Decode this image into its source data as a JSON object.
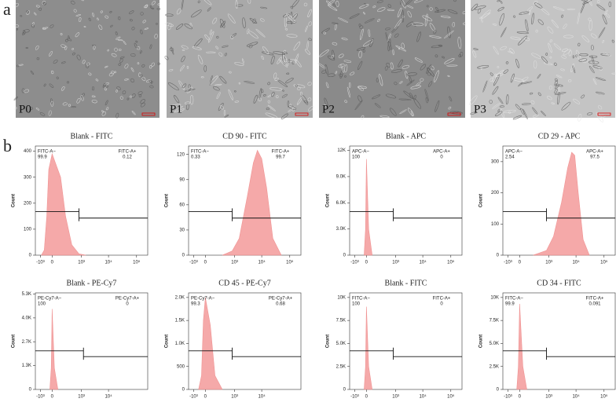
{
  "panel_a": {
    "label": "a",
    "images": [
      "P0",
      "P1",
      "P2",
      "P3"
    ]
  },
  "panel_b": {
    "label": "b"
  },
  "chart_data": [
    {
      "type": "area",
      "title": "Blank - FITC",
      "ylabel": "Count",
      "color": "#f4a0a0",
      "xscale": "biexponential",
      "x": [
        -800,
        -400,
        -200,
        -100,
        0,
        100,
        200,
        400,
        800,
        1500
      ],
      "values": [
        0,
        20,
        150,
        330,
        390,
        300,
        150,
        40,
        5,
        0
      ],
      "xlim": [
        -3000,
        250000
      ],
      "xticks": [
        {
          "value": -1000,
          "label": "-10³"
        },
        0,
        {
          "value": 1000,
          "label": "10³"
        },
        {
          "value": 10000,
          "label": "10⁴"
        },
        {
          "value": 100000,
          "label": "10⁵"
        }
      ],
      "ylim": [
        0,
        420
      ],
      "yticks": [
        0,
        100,
        200,
        300,
        400
      ],
      "gate": 800,
      "gate_labels": {
        "neg": "FITC-A−",
        "neg_value": 99.9,
        "pos": "FITC-A+",
        "pos_value": 0.12
      }
    },
    {
      "type": "area",
      "title": "CD 90 - FITC",
      "ylabel": "Count",
      "color": "#f4a0a0",
      "xscale": "biexponential",
      "x": [
        300,
        800,
        1500,
        3000,
        5000,
        7000,
        10000,
        15000,
        25000,
        50000
      ],
      "values": [
        0,
        5,
        20,
        70,
        110,
        125,
        115,
        80,
        20,
        0
      ],
      "xlim": [
        -3000,
        250000
      ],
      "xticks": [
        {
          "value": -1000,
          "label": "-10³"
        },
        0,
        {
          "value": 1000,
          "label": "10³"
        },
        {
          "value": 10000,
          "label": "10⁴"
        },
        {
          "value": 100000,
          "label": "10⁵"
        }
      ],
      "ylim": [
        0,
        130
      ],
      "yticks": [
        0,
        30,
        60,
        90,
        120
      ],
      "gate": 800,
      "gate_labels": {
        "neg": "FITC-A−",
        "neg_value": 0.33,
        "pos": "FITC-A+",
        "pos_value": 99.7
      }
    },
    {
      "type": "area",
      "title": "Blank - APC",
      "ylabel": "Count",
      "color": "#f4a0a0",
      "xscale": "biexponential",
      "x": [
        -60,
        -20,
        0,
        20,
        60
      ],
      "values": [
        0,
        3000,
        11000,
        3000,
        0
      ],
      "xlim": [
        -3000,
        250000
      ],
      "xticks": [
        {
          "value": -1000,
          "label": "-10³"
        },
        0,
        {
          "value": 1000,
          "label": "10³"
        },
        {
          "value": 10000,
          "label": "10⁴"
        },
        {
          "value": 100000,
          "label": "10⁵"
        }
      ],
      "ylim": [
        0,
        12500
      ],
      "yticks": [
        0,
        {
          "value": 3000,
          "label": "3.0K"
        },
        {
          "value": 6000,
          "label": "6.0K"
        },
        {
          "value": 9000,
          "label": "9.0K"
        },
        {
          "value": 12000,
          "label": "12K"
        }
      ],
      "gate": 800,
      "gate_labels": {
        "neg": "APC-A−",
        "neg_value": 100,
        "pos": "APC-A+",
        "pos_value": 0
      }
    },
    {
      "type": "area",
      "title": "CD 29 - APC",
      "ylabel": "Count",
      "color": "#f4a0a0",
      "xscale": "biexponential",
      "x": [
        200,
        800,
        1500,
        3000,
        5000,
        7000,
        9000,
        12000,
        18000,
        30000
      ],
      "values": [
        0,
        15,
        60,
        170,
        280,
        330,
        320,
        200,
        50,
        0
      ],
      "xlim": [
        -3000,
        250000
      ],
      "xticks": [
        {
          "value": -1000,
          "label": "-10³"
        },
        0,
        {
          "value": 1000,
          "label": "10³"
        },
        {
          "value": 10000,
          "label": "10⁴"
        },
        {
          "value": 100000,
          "label": "10⁵"
        }
      ],
      "ylim": [
        0,
        350
      ],
      "yticks": [
        0,
        100,
        200,
        300
      ],
      "gate": 800,
      "gate_labels": {
        "neg": "APC-A−",
        "neg_value": 2.54,
        "pos": "APC-A+",
        "pos_value": 97.5
      }
    },
    {
      "type": "area",
      "title": "Blank - PE-Cy7",
      "ylabel": "Count",
      "color": "#f4a0a0",
      "xscale": "biexponential",
      "x": [
        -60,
        -20,
        0,
        20,
        60
      ],
      "values": [
        0,
        1200,
        4500,
        1200,
        0
      ],
      "xlim": [
        -3000,
        250000
      ],
      "xticks": [
        {
          "value": -1000,
          "label": "-10³"
        },
        0,
        {
          "value": 1000,
          "label": "10³"
        },
        {
          "value": 10000,
          "label": "10⁴"
        }
      ],
      "ylim": [
        0,
        5400
      ],
      "yticks": [
        0,
        {
          "value": 1333,
          "label": "1.3K"
        },
        {
          "value": 2667,
          "label": "2.7K"
        },
        {
          "value": 4000,
          "label": "4.0K"
        },
        {
          "value": 5333,
          "label": "5.3K"
        }
      ],
      "gate": 1200,
      "gate_labels": {
        "neg": "PE-Cy7-A−",
        "neg_value": 100,
        "pos": "PE-Cy7-A+",
        "pos_value": 0
      }
    },
    {
      "type": "area",
      "title": "CD 45 - PE-Cy7",
      "ylabel": "Count",
      "color": "#f4a0a0",
      "xscale": "biexponential",
      "x": [
        -300,
        -120,
        -50,
        0,
        50,
        120,
        300
      ],
      "values": [
        0,
        300,
        1500,
        2000,
        1400,
        300,
        0
      ],
      "xlim": [
        -3000,
        250000
      ],
      "xticks": [
        {
          "value": -1000,
          "label": "-10³"
        },
        0,
        {
          "value": 1000,
          "label": "10³"
        },
        {
          "value": 10000,
          "label": "10⁴"
        }
      ],
      "ylim": [
        0,
        2100
      ],
      "yticks": [
        0,
        500,
        {
          "value": 1000,
          "label": "1.0K"
        },
        {
          "value": 1500,
          "label": "1.5K"
        },
        {
          "value": 2000,
          "label": "2.0K"
        }
      ],
      "gate": 800,
      "gate_labels": {
        "neg": "PE-Cy7-A−",
        "neg_value": 99.3,
        "pos": "PE-Cy7-A+",
        "pos_value": 0.68
      }
    },
    {
      "type": "area",
      "title": "Blank - FITC",
      "ylabel": "Count",
      "color": "#f4a0a0",
      "xscale": "biexponential",
      "x": [
        -60,
        -20,
        0,
        20,
        60
      ],
      "values": [
        0,
        2500,
        9000,
        2500,
        0
      ],
      "xlim": [
        -3000,
        250000
      ],
      "xticks": [
        {
          "value": -1000,
          "label": "-10³"
        },
        0,
        {
          "value": 1000,
          "label": "10³"
        },
        {
          "value": 10000,
          "label": "10⁴"
        },
        {
          "value": 100000,
          "label": "10⁵"
        }
      ],
      "ylim": [
        0,
        10500
      ],
      "yticks": [
        0,
        {
          "value": 2500,
          "label": "2.5K"
        },
        {
          "value": 5000,
          "label": "5.0K"
        },
        {
          "value": 7500,
          "label": "7.5K"
        },
        {
          "value": 10000,
          "label": "10K"
        }
      ],
      "gate": 800,
      "gate_labels": {
        "neg": "FITC-A−",
        "neg_value": 100,
        "pos": "FITC-A+",
        "pos_value": 0
      }
    },
    {
      "type": "area",
      "title": "CD  34 - FITC",
      "ylabel": "Count",
      "color": "#f4a0a0",
      "xscale": "biexponential",
      "x": [
        -80,
        -30,
        0,
        30,
        80
      ],
      "values": [
        0,
        2500,
        9300,
        2500,
        0
      ],
      "xlim": [
        -3000,
        250000
      ],
      "xticks": [
        {
          "value": -1000,
          "label": "-10³"
        },
        0,
        {
          "value": 1000,
          "label": "10³"
        },
        {
          "value": 10000,
          "label": "10⁴"
        },
        {
          "value": 100000,
          "label": "10⁵"
        }
      ],
      "ylim": [
        0,
        10500
      ],
      "yticks": [
        0,
        {
          "value": 2500,
          "label": "2.5K"
        },
        {
          "value": 5000,
          "label": "5.0K"
        },
        {
          "value": 7500,
          "label": "7.5K"
        },
        {
          "value": 10000,
          "label": "10K"
        }
      ],
      "gate": 800,
      "gate_labels": {
        "neg": "FITC-A−",
        "neg_value": 99.9,
        "pos": "FITC-A+",
        "pos_value": 0.091
      }
    }
  ]
}
